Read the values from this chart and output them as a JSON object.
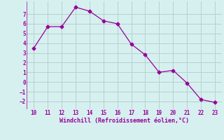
{
  "x": [
    10,
    11,
    12,
    13,
    14,
    15,
    16,
    17,
    18,
    19,
    20,
    21,
    22,
    23
  ],
  "y": [
    3.5,
    5.7,
    5.7,
    7.7,
    7.3,
    6.3,
    6.0,
    3.9,
    2.8,
    1.0,
    1.2,
    -0.1,
    -1.8,
    -2.1
  ],
  "line_color": "#990099",
  "marker": "D",
  "marker_size": 2.5,
  "bg_color": "#d6f0ef",
  "grid_color": "#b8d0d0",
  "xlabel": "Windchill (Refroidissement éolien,°C)",
  "xlabel_color": "#990099",
  "tick_color": "#990099",
  "yticks": [
    -2,
    -1,
    0,
    1,
    2,
    3,
    4,
    5,
    6,
    7
  ],
  "xticks": [
    10,
    11,
    12,
    13,
    14,
    15,
    16,
    17,
    18,
    19,
    20,
    21,
    22,
    23
  ],
  "ylim": [
    -2.8,
    8.3
  ],
  "xlim": [
    9.5,
    23.5
  ]
}
